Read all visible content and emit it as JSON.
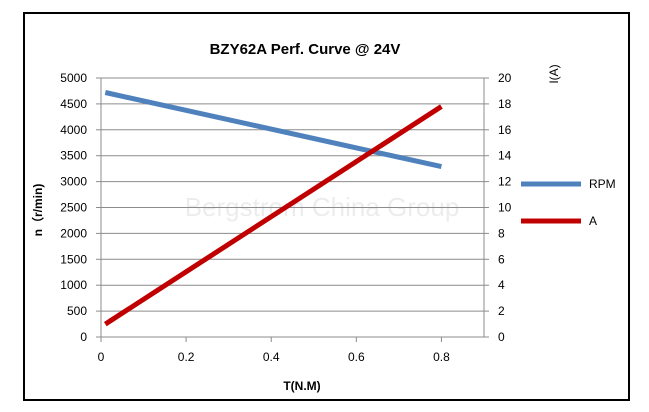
{
  "chart_data": {
    "type": "line",
    "title": "BZY62A  Perf.  Curve @ 24V",
    "xlabel": "T(N.M)",
    "ylabel_left": "n（r/min)",
    "ylabel_right": "I(A)",
    "xlim": [
      0,
      0.9
    ],
    "ylim_left": [
      0,
      5000
    ],
    "ylim_right": [
      0,
      20
    ],
    "x_ticks": [
      "0",
      "0.2",
      "0.4",
      "0.6",
      "0.8"
    ],
    "y_left_ticks": [
      "0",
      "500",
      "1000",
      "1500",
      "2000",
      "2500",
      "3000",
      "3500",
      "4000",
      "4500",
      "5000"
    ],
    "y_right_ticks": [
      "0",
      "2",
      "4",
      "6",
      "8",
      "10",
      "12",
      "14",
      "16",
      "18",
      "20"
    ],
    "grid": true,
    "legend_position": "right",
    "series": [
      {
        "name": "RPM",
        "axis": "left",
        "color": "#4f81bd",
        "points": [
          [
            0.01,
            4720
          ],
          [
            0.8,
            3290
          ]
        ]
      },
      {
        "name": "A",
        "axis": "right",
        "color": "#c00000",
        "points": [
          [
            0.01,
            1.0
          ],
          [
            0.8,
            17.8
          ]
        ]
      }
    ],
    "watermark": "Bergstrom China Group"
  }
}
